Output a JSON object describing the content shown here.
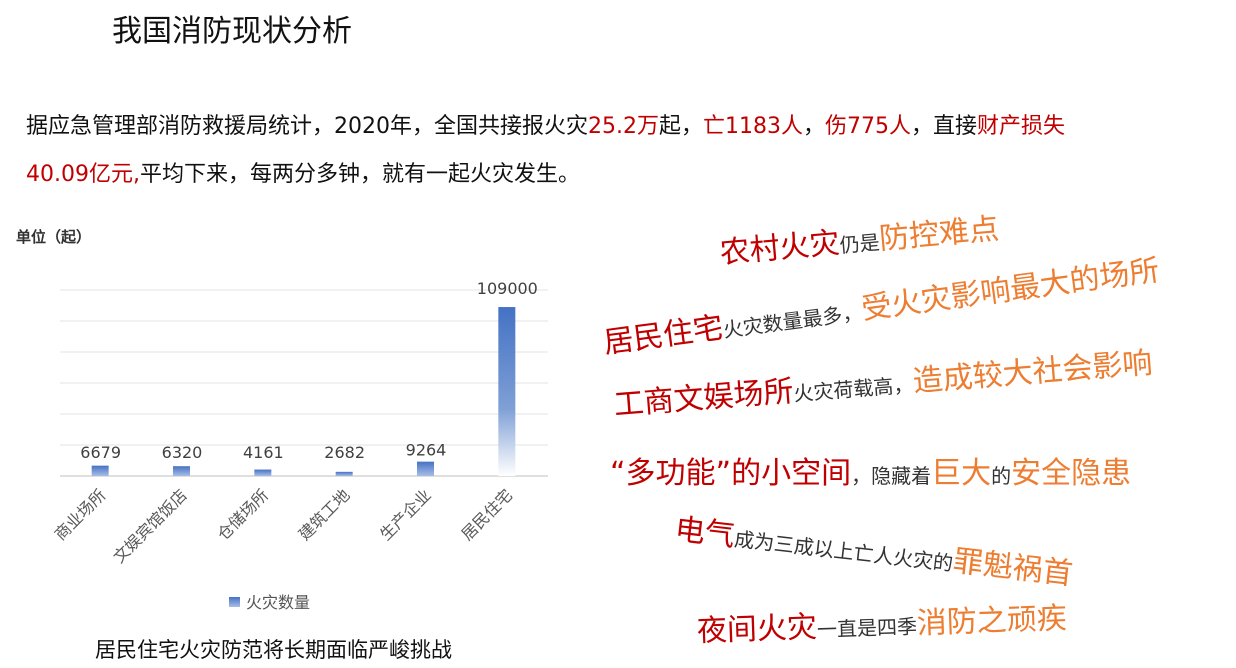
{
  "title": "我国消防现状分析",
  "intro": {
    "p1": "据应急管理部消防救援局统计，2020年，全国共接报火灾",
    "fires": "25.2万",
    "p2": "起，",
    "deaths": "亡1183人",
    "p3": "，",
    "injuries": "伤775人",
    "p4": "，直接",
    "loss_label": "财产损失",
    "loss": "40.09亿元,",
    "p5": "平均下来，每两分多钟，就有一起火灾发生。"
  },
  "chart_data": {
    "type": "bar",
    "unit_label": "单位（起）",
    "categories": [
      "商业场所",
      "文娱宾馆饭店",
      "仓储场所",
      "建筑工地",
      "生产企业",
      "居民住宅"
    ],
    "series": [
      {
        "name": "火灾数量",
        "values": [
          6679,
          6320,
          4161,
          2682,
          9264,
          109000
        ],
        "color": "#4472c4"
      }
    ],
    "ylim": [
      0,
      120000
    ],
    "grid": true,
    "legend": "bottom",
    "data_labels": [
      "6679",
      "6320",
      "4161",
      "2682",
      "9264",
      "109000"
    ]
  },
  "caption": "居民住宅火灾防范将长期面临严峻挑战",
  "slogans": [
    [
      {
        "t": "农村火灾",
        "c": "red"
      },
      {
        "t": "仍是",
        "c": "gray"
      },
      {
        "t": "防控难点",
        "c": "orange"
      }
    ],
    [
      {
        "t": "居民住宅",
        "c": "red"
      },
      {
        "t": "火灾数量最多，",
        "c": "gray"
      },
      {
        "t": "受火灾影响最大的场所",
        "c": "orange"
      }
    ],
    [
      {
        "t": "工商文娱场所",
        "c": "red"
      },
      {
        "t": "火灾荷载高，",
        "c": "gray"
      },
      {
        "t": "造成较大社会影响",
        "c": "orange"
      }
    ],
    [
      {
        "t": "“多功能”的小空间",
        "c": "red"
      },
      {
        "t": "，隐藏着",
        "c": "gray"
      },
      {
        "t": "巨大",
        "c": "orange"
      },
      {
        "t": "的",
        "c": "gray"
      },
      {
        "t": "安全隐患",
        "c": "orange"
      }
    ],
    [
      {
        "t": "电气",
        "c": "red"
      },
      {
        "t": "成为三成以上亡人火灾的",
        "c": "gray"
      },
      {
        "t": "罪魁祸首",
        "c": "orange"
      }
    ],
    [
      {
        "t": "夜间火灾",
        "c": "red"
      },
      {
        "t": "一直是四季",
        "c": "gray"
      },
      {
        "t": "消防之顽疾",
        "c": "orange"
      }
    ]
  ]
}
